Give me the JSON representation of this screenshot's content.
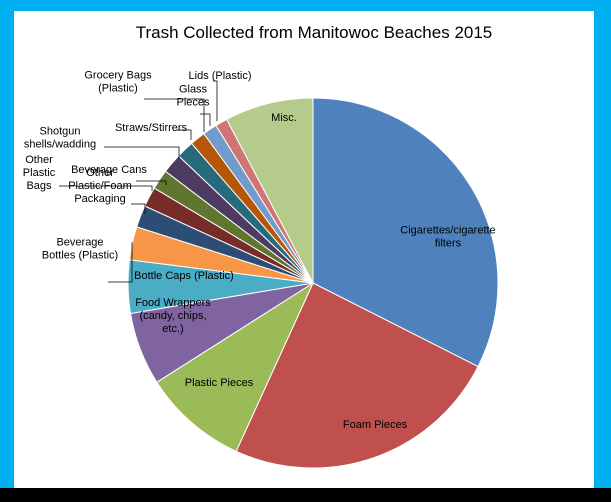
{
  "chart_data": {
    "type": "pie",
    "title": "Trash Collected from Manitowoc Beaches 2015",
    "legend": "none",
    "slices": [
      {
        "label": "Cigarettes/cigarette filters",
        "value": 33.6,
        "color": "#4f81bd"
      },
      {
        "label": "Foam Pieces",
        "value": 25.2,
        "color": "#c0504d"
      },
      {
        "label": "Plastic Pieces",
        "value": 9.5,
        "color": "#9bbb59"
      },
      {
        "label": "Food Wrappers (candy, chips, etc.)",
        "value": 6.6,
        "color": "#8064a2"
      },
      {
        "label": "Bottle Caps (Plastic)",
        "value": 4.8,
        "color": "#4bacc6"
      },
      {
        "label": "Beverage Bottles (Plastic)",
        "value": 3.0,
        "color": "#f79646"
      },
      {
        "label": "Other Plastic/Foam Packaging",
        "value": 2.0,
        "color": "#2c4d75"
      },
      {
        "label": "Other Plastic Bags",
        "value": 1.8,
        "color": "#772c2a"
      },
      {
        "label": "Beverage Cans",
        "value": 1.8,
        "color": "#5f7530"
      },
      {
        "label": "Shotgun shells/wadding",
        "value": 1.8,
        "color": "#4d3b62"
      },
      {
        "label": "Straws/Stirrers",
        "value": 1.6,
        "color": "#276a7c"
      },
      {
        "label": "Grocery Bags (Plastic)",
        "value": 1.4,
        "color": "#b65708"
      },
      {
        "label": "Glass Pieces",
        "value": 1.3,
        "color": "#729aca"
      },
      {
        "label": "Lids (Plastic)",
        "value": 1.1,
        "color": "#d17574"
      },
      {
        "label": "Misc.",
        "value": 8.0,
        "color": "#b5cb8b"
      }
    ],
    "label_lines": [
      [
        "Cigarettes/cigarette",
        "filters"
      ],
      [
        "Foam Pieces"
      ],
      [
        "Plastic Pieces"
      ],
      [
        "Food Wrappers",
        "(candy, chips,",
        "etc.)"
      ],
      [
        "Bottle Caps (Plastic)"
      ],
      [
        "Beverage",
        "Bottles (Plastic)"
      ],
      [
        "Other",
        "Plastic/Foam",
        "Packaging"
      ],
      [
        "Other",
        "Plastic",
        "Bags"
      ],
      [
        "Beverage Cans"
      ],
      [
        "Shotgun",
        "shells/wadding"
      ],
      [
        "Straws/Stirrers"
      ],
      [
        "Grocery Bags",
        "(Plastic)"
      ],
      [
        "Glass",
        "Pieces"
      ],
      [
        "Lids (Plastic)"
      ],
      [
        "Misc."
      ]
    ]
  }
}
